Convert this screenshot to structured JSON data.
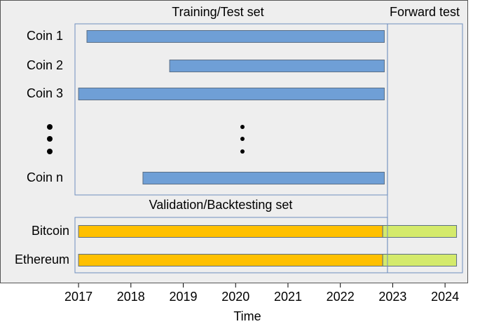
{
  "chart_data": {
    "type": "gantt",
    "xlabel": "Time",
    "xlim": [
      2015.5,
      2024.44
    ],
    "xticks": [
      2017,
      2018,
      2019,
      2020,
      2021,
      2022,
      2023,
      2024
    ],
    "groups": [
      {
        "label": "Training/Test set",
        "rows": [
          {
            "name": "Coin 1",
            "bars": [
              {
                "start": 2017.16,
                "end": 2022.84,
                "color": "#6f9fd6"
              }
            ]
          },
          {
            "name": "Coin 2",
            "bars": [
              {
                "start": 2018.74,
                "end": 2022.84,
                "color": "#6f9fd6"
              }
            ]
          },
          {
            "name": "Coin 3",
            "bars": [
              {
                "start": 2017.0,
                "end": 2022.84,
                "color": "#6f9fd6"
              }
            ]
          },
          {
            "name": "Coin n",
            "bars": [
              {
                "start": 2018.23,
                "end": 2022.84,
                "color": "#6f9fd6"
              }
            ]
          }
        ]
      },
      {
        "label": "Validation/Backtesting set",
        "rows": [
          {
            "name": "Bitcoin",
            "bars": [
              {
                "start": 2017.0,
                "end": 2022.81,
                "color": "#ffc000"
              },
              {
                "start": 2022.81,
                "end": 2024.22,
                "color": "#d4ea6b"
              }
            ]
          },
          {
            "name": "Ethereum",
            "bars": [
              {
                "start": 2017.0,
                "end": 2022.81,
                "color": "#ffc000"
              },
              {
                "start": 2022.81,
                "end": 2024.22,
                "color": "#d4ea6b"
              }
            ]
          }
        ]
      }
    ],
    "forward_test": {
      "label": "Forward test",
      "start": 2022.9
    }
  }
}
